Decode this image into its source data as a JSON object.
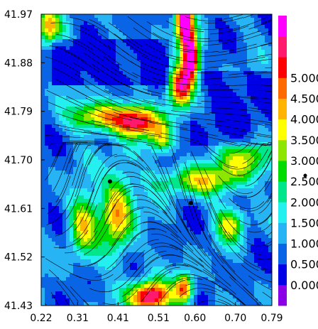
{
  "chart_data": {
    "type": "heatmap",
    "title": "",
    "xlabel": "",
    "ylabel": "",
    "xlim": [
      0.22,
      0.79
    ],
    "ylim": [
      41.43,
      41.97
    ],
    "x_ticks": [
      "0.22",
      "0.31",
      "0.41",
      "0.51",
      "0.60",
      "0.70",
      "0.79"
    ],
    "y_ticks": [
      "41.97",
      "41.88",
      "41.79",
      "41.70",
      "41.61",
      "41.52",
      "41.43"
    ],
    "colorbar": {
      "levels": [
        0.0,
        0.5,
        1.0,
        1.5,
        2.0,
        2.5,
        3.0,
        3.5,
        4.0,
        4.5,
        5.0
      ],
      "tick_labels": [
        "0.000",
        "0.500",
        "1.000",
        "1.500",
        "2.000",
        "2.500",
        "3.000",
        "3.500",
        "4.000",
        "4.500",
        "5.000"
      ],
      "colors": [
        "#8a00e6",
        "#0000e6",
        "#0a64e6",
        "#27b4f5",
        "#25f0f0",
        "#00e68a",
        "#00dc00",
        "#8ee600",
        "#ffff00",
        "#ffb400",
        "#ff6a00",
        "#ff0000",
        "#ff1a6e",
        "#ff00ff"
      ]
    },
    "overlay": "streamlines",
    "markers": [
      {
        "x": 0.39,
        "y": 41.66
      },
      {
        "x": 0.59,
        "y": 41.62
      }
    ]
  }
}
